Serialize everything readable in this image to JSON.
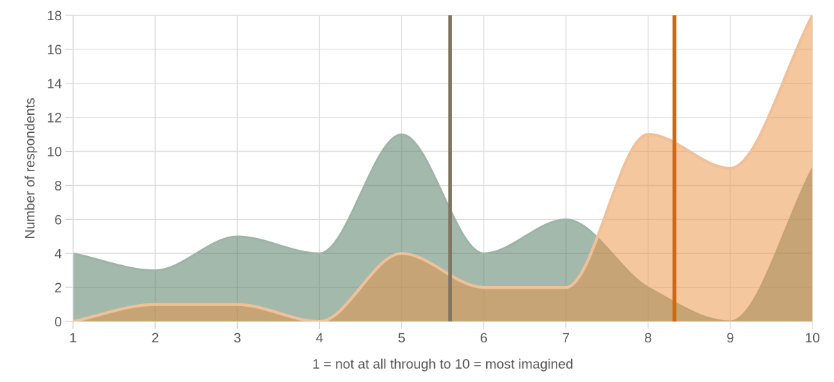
{
  "chart_data": {
    "type": "area",
    "xlabel": "1 = not at all through to 10 = most imagined",
    "ylabel": "Number of respondents",
    "x": [
      1,
      2,
      3,
      4,
      5,
      6,
      7,
      8,
      9,
      10
    ],
    "series": [
      {
        "color": "#a3b9ac",
        "values": [
          4,
          3,
          5,
          4,
          11,
          4,
          6,
          2,
          0,
          9
        ]
      },
      {
        "color": "#f5c79f",
        "values": [
          0,
          1,
          1,
          0,
          4,
          2,
          2,
          11,
          9,
          18
        ]
      }
    ],
    "xlim": [
      1,
      10
    ],
    "xticks": [
      1,
      2,
      3,
      4,
      5,
      6,
      7,
      8,
      9,
      10
    ],
    "ylim": [
      0,
      18
    ],
    "yticks": [
      0,
      2,
      4,
      6,
      8,
      10,
      12,
      14,
      16,
      18
    ],
    "grid": true,
    "ref_lines": [
      {
        "axis": "x",
        "value": 5.59,
        "label": null,
        "color": "#7f7560"
      },
      {
        "axis": "x",
        "value": 8.32,
        "label": null,
        "color": "#d2670c"
      }
    ]
  }
}
